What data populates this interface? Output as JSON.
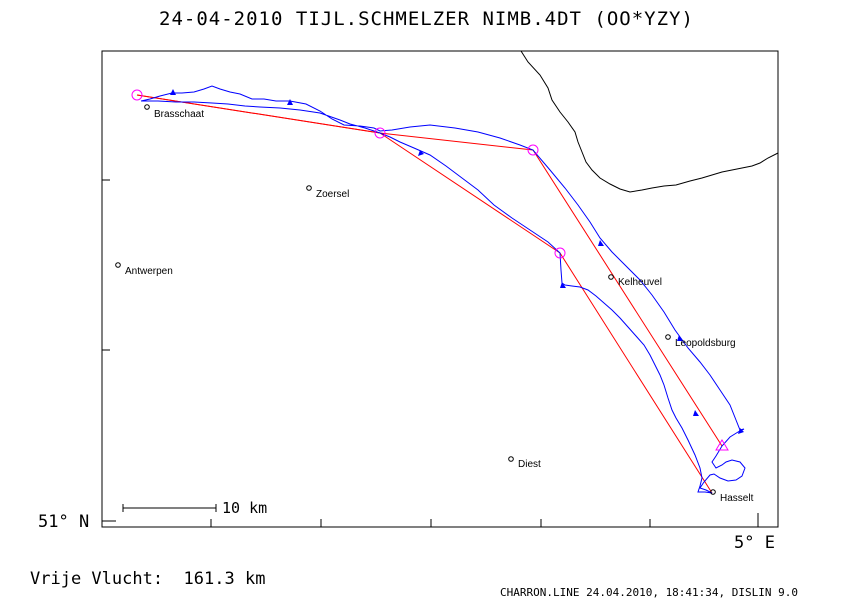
{
  "title": "24-04-2010   TIJL.SCHMELZER   NIMB.4DT (OO*YZY)",
  "axes": {
    "lat_label": "51° N",
    "lon_label": "5° E"
  },
  "scale_bar": {
    "label": "10 km"
  },
  "flight": {
    "label": "Vrije Vlucht:",
    "distance": "161.3 km"
  },
  "footer": "CHARRON.LINE 24.04.2010, 18:41:34, DISLIN 9.0",
  "cities": [
    {
      "name": "Brasschaat"
    },
    {
      "name": "Zoersel"
    },
    {
      "name": "Antwerpen"
    },
    {
      "name": "Kelheuvel"
    },
    {
      "name": "Leopoldsburg"
    },
    {
      "name": "Diest"
    },
    {
      "name": "Hasselt"
    }
  ],
  "colors": {
    "track": "#0000ff",
    "task_line": "#ff0000",
    "turnpoint": "#ff00ff",
    "border": "#000000"
  }
}
